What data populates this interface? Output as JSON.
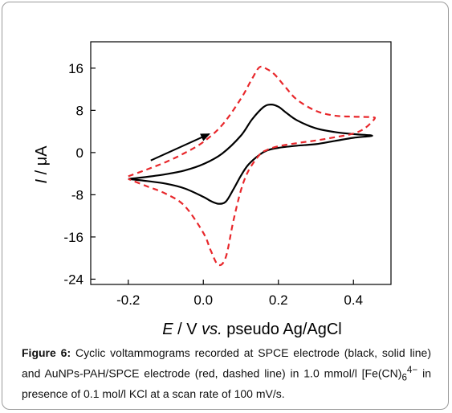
{
  "chart_data": {
    "type": "line",
    "xlabel": {
      "var": "E",
      "sep": " / V ",
      "vs": "vs.",
      "rest": " pseudo Ag/AgCl"
    },
    "ylabel": {
      "var": "I",
      "rest": " / μA"
    },
    "xlim": [
      -0.3,
      0.5
    ],
    "ylim": [
      -25,
      21
    ],
    "xticks": [
      -0.2,
      0.0,
      0.2,
      0.4
    ],
    "xtick_labels": [
      "-0.2",
      "0.0",
      "0.2",
      "0.4"
    ],
    "yticks": [
      16,
      8,
      0,
      -8,
      -16,
      -24
    ],
    "ytick_labels": [
      "16",
      "8",
      "0",
      "-8",
      "-16",
      "-24"
    ],
    "grid": false,
    "legend": "none",
    "annotation": "arrow indicating anodic (forward) scan direction",
    "arrow": {
      "from": [
        -0.14,
        -1.5
      ],
      "to": [
        0.015,
        3.5
      ]
    },
    "series": [
      {
        "style": "solid",
        "color": "#000000",
        "x": [
          -0.2,
          -0.15,
          -0.1,
          -0.05,
          0.0,
          0.05,
          0.1,
          0.13,
          0.16,
          0.18,
          0.2,
          0.22,
          0.25,
          0.3,
          0.35,
          0.4,
          0.45,
          0.4,
          0.35,
          0.3,
          0.25,
          0.2,
          0.17,
          0.15,
          0.12,
          0.1,
          0.08,
          0.06,
          0.04,
          0.02,
          0.0,
          -0.05,
          -0.1,
          -0.15,
          -0.2
        ],
        "y": [
          -5,
          -4.6,
          -4.1,
          -3.4,
          -2.2,
          -0.2,
          3.2,
          6.3,
          8.6,
          9.1,
          8.7,
          7.6,
          6.1,
          4.6,
          3.9,
          3.5,
          3.2,
          2.8,
          2.2,
          1.6,
          1.3,
          0.9,
          0.4,
          -0.4,
          -2.3,
          -4.4,
          -7.0,
          -9.3,
          -9.7,
          -9.2,
          -8.4,
          -6.8,
          -5.9,
          -5.4,
          -5.0
        ]
      },
      {
        "style": "dashed",
        "color": "#e8272b",
        "x": [
          -0.2,
          -0.15,
          -0.1,
          -0.05,
          0.0,
          0.05,
          0.1,
          0.13,
          0.15,
          0.17,
          0.19,
          0.22,
          0.25,
          0.3,
          0.35,
          0.4,
          0.45,
          0.455,
          0.43,
          0.4,
          0.35,
          0.3,
          0.25,
          0.2,
          0.17,
          0.15,
          0.12,
          0.1,
          0.08,
          0.06,
          0.04,
          0.02,
          0.0,
          -0.05,
          -0.1,
          -0.15,
          -0.2
        ],
        "y": [
          -4.5,
          -3.2,
          -1.8,
          -0.1,
          2.0,
          5.2,
          10.2,
          14.0,
          16.2,
          15.8,
          14.8,
          12.3,
          10.0,
          7.9,
          7.0,
          6.8,
          6.7,
          6.3,
          4.6,
          3.6,
          2.9,
          2.3,
          1.8,
          1.2,
          0.5,
          -0.4,
          -3.5,
          -7.2,
          -13.0,
          -19.8,
          -21.3,
          -18.6,
          -15.2,
          -10.1,
          -7.8,
          -6.4,
          -5.0
        ]
      }
    ]
  },
  "caption": {
    "label": "Figure 6:",
    "text1": " Cyclic voltammograms recorded at SPCE electrode (black, solid line) and AuNPs-PAH/SPCE electrode (red, dashed line) in 1.0 mmol/l [Fe(CN)",
    "sub": "6",
    "sup": "4−",
    "text2": " in presence of 0.1 mol/l KCl at a scan rate of 100 mV/s."
  }
}
